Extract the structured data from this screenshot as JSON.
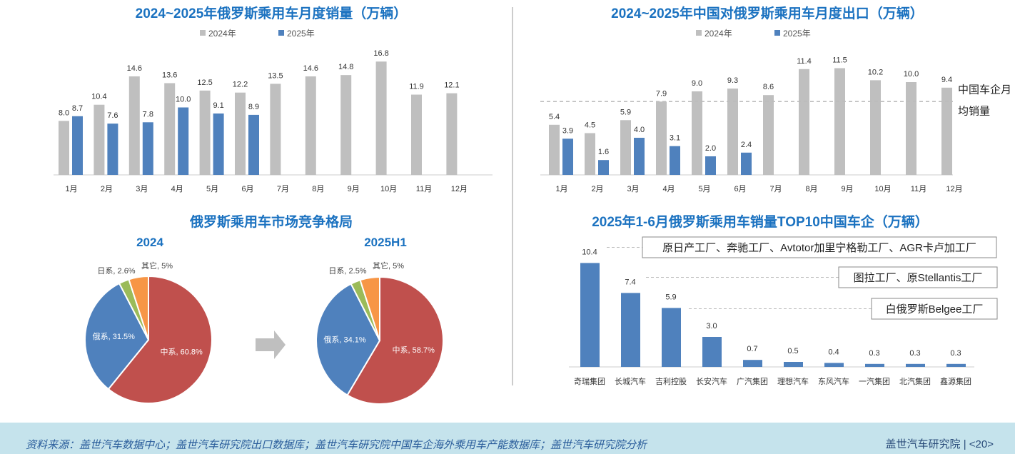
{
  "colors": {
    "y2024": "#bfbfbf",
    "y2025": "#4f81bd",
    "china": "#c0504d",
    "russia": "#4f81bd",
    "japan": "#9bbb59",
    "other": "#f79646",
    "title": "#1b72c0"
  },
  "chart_data": [
    {
      "type": "bar",
      "title": "2024~2025年俄罗斯乘用车月度销量（万辆）",
      "categories": [
        "1月",
        "2月",
        "3月",
        "4月",
        "5月",
        "6月",
        "7月",
        "8月",
        "9月",
        "10月",
        "11月",
        "12月"
      ],
      "series": [
        {
          "name": "2024年",
          "values": [
            8.0,
            10.4,
            14.6,
            13.6,
            12.5,
            12.2,
            13.5,
            14.6,
            14.8,
            16.8,
            11.9,
            12.1
          ]
        },
        {
          "name": "2025年",
          "values": [
            8.7,
            7.6,
            7.8,
            10.0,
            9.1,
            8.9,
            null,
            null,
            null,
            null,
            null,
            null
          ]
        }
      ],
      "ylim": [
        0,
        17
      ],
      "legend": "top"
    },
    {
      "type": "bar",
      "title": "2024~2025年中国对俄罗斯乘用车月度出口（万辆）",
      "categories": [
        "1月",
        "2月",
        "3月",
        "4月",
        "5月",
        "6月",
        "7月",
        "8月",
        "9月",
        "10月",
        "11月",
        "12月"
      ],
      "series": [
        {
          "name": "2024年",
          "values": [
            5.4,
            4.5,
            5.9,
            7.9,
            9.0,
            9.3,
            8.6,
            11.4,
            11.5,
            10.2,
            10.0,
            9.4
          ]
        },
        {
          "name": "2025年",
          "values": [
            3.9,
            1.6,
            4.0,
            3.1,
            2.0,
            2.4,
            null,
            null,
            null,
            null,
            null,
            null
          ]
        }
      ],
      "reference_line": {
        "value": 7.9,
        "label_line1": "中国车企月",
        "label_line2": "均销量"
      },
      "ylim": [
        0,
        12
      ],
      "legend": "top"
    },
    {
      "type": "pie",
      "title": "俄罗斯乘用车市场竞争格局",
      "subtitle": "2024",
      "slices": [
        {
          "name": "中系",
          "value": 60.8,
          "label": "中系, 60.8%"
        },
        {
          "name": "俄系",
          "value": 31.5,
          "label": "俄系, 31.5%"
        },
        {
          "name": "日系",
          "value": 2.6,
          "label": "日系, 2.6%"
        },
        {
          "name": "其它",
          "value": 5,
          "label": "其它, 5%"
        }
      ]
    },
    {
      "type": "pie",
      "subtitle": "2025H1",
      "slices": [
        {
          "name": "中系",
          "value": 58.7,
          "label": "中系, 58.7%"
        },
        {
          "name": "俄系",
          "value": 34.1,
          "label": "俄系, 34.1%"
        },
        {
          "name": "日系",
          "value": 2.5,
          "label": "日系, 2.5%"
        },
        {
          "name": "其它",
          "value": 5,
          "label": "其它, 5%"
        }
      ]
    },
    {
      "type": "bar",
      "title": "2025年1-6月俄罗斯乘用车销量TOP10中国车企（万辆）",
      "categories": [
        "奇瑞集团",
        "长城汽车",
        "吉利控股",
        "长安汽车",
        "广汽集团",
        "理想汽车",
        "东风汽车",
        "一汽集团",
        "北汽集团",
        "鑫源集团"
      ],
      "values": [
        10.4,
        7.4,
        5.9,
        3.0,
        0.7,
        0.5,
        0.4,
        0.3,
        0.3,
        0.3
      ],
      "annotations": [
        "原日产工厂、奔驰工厂、Avtotor加里宁格勒工厂、AGR卡卢加工厂",
        "图拉工厂、原Stellantis工厂",
        "白俄罗斯Belgee工厂"
      ],
      "ylim": [
        0,
        11
      ]
    }
  ],
  "footer": {
    "source": "资料来源：盖世汽车数据中心；盖世汽车研究院出口数据库；盖世汽车研究院中国车企海外乘用车产能数据库；盖世汽车研究院分析",
    "brand": "盖世汽车研究院",
    "page": "<20>"
  }
}
